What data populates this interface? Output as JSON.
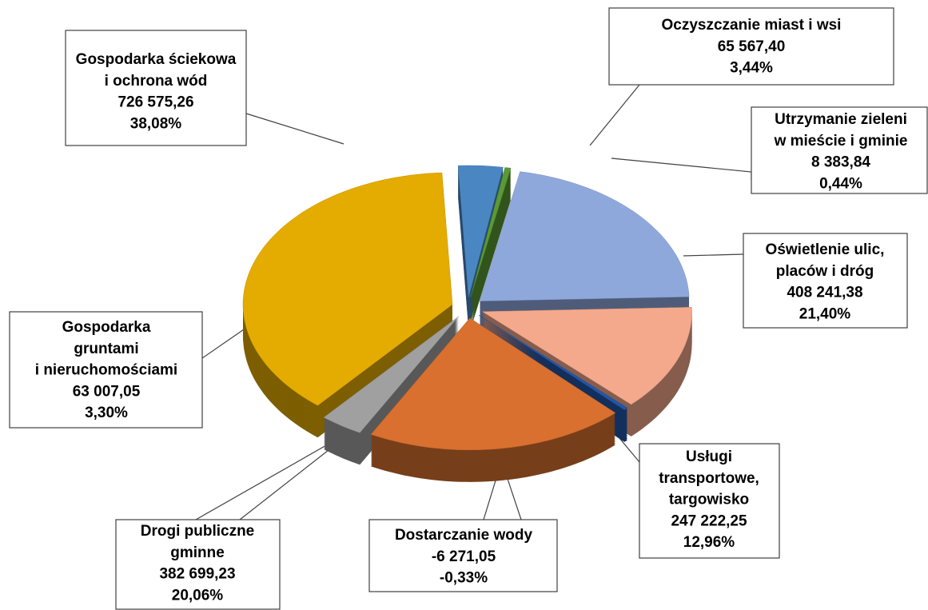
{
  "chart_data": {
    "type": "pie",
    "categories": [
      [
        "Oczyszczanie miast i wsi"
      ],
      [
        "Utrzymanie zieleni",
        "w mieście i gminie"
      ],
      [
        "Oświetlenie ulic,",
        "placów i dróg"
      ],
      [
        "Usługi",
        "transportowe,",
        "targowisko"
      ],
      [
        "Dostarczanie wody"
      ],
      [
        "Drogi publiczne",
        "gminne"
      ],
      [
        "Gospodarka",
        "gruntami",
        "i nieruchomościami"
      ],
      [
        "Gospodarka ściekowa",
        "i ochrona wód"
      ]
    ],
    "values": [
      65567.4,
      8383.84,
      408241.38,
      247222.25,
      -6271.05,
      382699.23,
      63007.05,
      726575.26
    ],
    "value_labels": [
      "65 567,40",
      "8 383,84",
      "408 241,38",
      "247 222,25",
      "-6 271,05",
      "382 699,23",
      "63 007,05",
      "726 575,26"
    ],
    "percents": [
      3.44,
      0.44,
      21.4,
      12.96,
      -0.33,
      20.06,
      3.3,
      38.08
    ],
    "percent_labels": [
      "3,44%",
      "0,44%",
      "21,40%",
      "12,96%",
      "-0,33%",
      "20,06%",
      "3,30%",
      "38,08%"
    ],
    "colors": [
      "#4a87c2",
      "#5a9a35",
      "#8fa8dc",
      "#f4a98c",
      "#2356a8",
      "#d9702f",
      "#a0a0a0",
      "#e4ab00"
    ]
  }
}
